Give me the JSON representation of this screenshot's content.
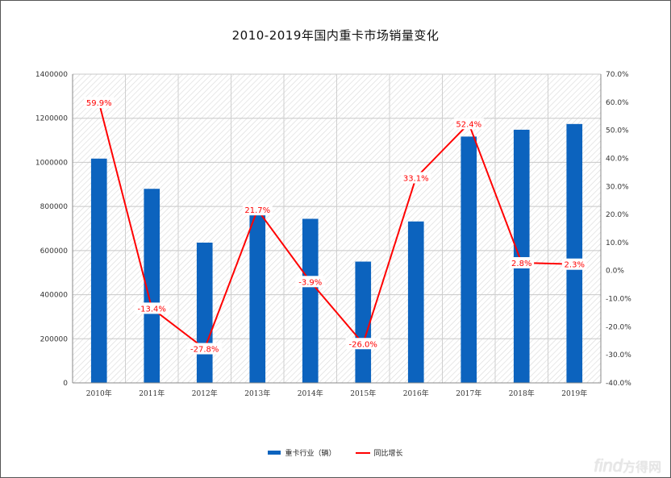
{
  "chart_data": {
    "type": "bar",
    "title": "2010-2019年国内重卡市场销量变化",
    "categories": [
      "2010年",
      "2011年",
      "2012年",
      "2013年",
      "2014年",
      "2015年",
      "2016年",
      "2017年",
      "2018年",
      "2019年"
    ],
    "series": [
      {
        "name": "重卡行业（辆）",
        "type": "bar",
        "axis": "left",
        "values": [
          1017000,
          880000,
          636000,
          774000,
          744000,
          550000,
          732000,
          1117000,
          1148000,
          1174000
        ]
      },
      {
        "name": "同比增长",
        "type": "line",
        "axis": "right",
        "values": [
          59.9,
          -13.4,
          -27.8,
          21.7,
          -3.9,
          -26.0,
          33.1,
          52.4,
          2.8,
          2.3
        ],
        "labels": [
          "59.9%",
          "-13.4%",
          "-27.8%",
          "21.7%",
          "-3.9%",
          "-26.0%",
          "33.1%",
          "52.4%",
          "2.8%",
          "2.3%"
        ]
      }
    ],
    "y_left": {
      "ylim": [
        0,
        1400000
      ],
      "ticks": [
        "0",
        "200000",
        "400000",
        "600000",
        "800000",
        "1000000",
        "1200000",
        "1400000"
      ]
    },
    "y_right": {
      "ylim": [
        -40,
        70
      ],
      "ticks": [
        "-40.0%",
        "-30.0%",
        "-20.0%",
        "-10.0%",
        "0.0%",
        "10.0%",
        "20.0%",
        "30.0%",
        "40.0%",
        "50.0%",
        "60.0%",
        "70.0%"
      ]
    },
    "grid": true,
    "legend_position": "bottom",
    "colors": {
      "bar": "#0C63BE",
      "line": "#FF0000"
    }
  },
  "watermark": {
    "latin": "find",
    "cn": "方得网"
  }
}
